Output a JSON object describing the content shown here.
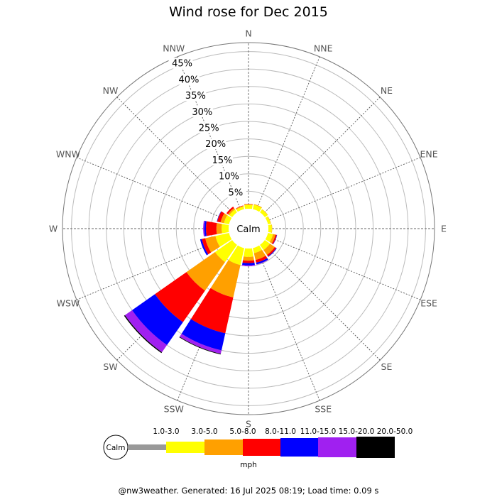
{
  "chart_data": {
    "type": "windrose",
    "title": "Wind rose for Dec 2015",
    "directions": [
      "N",
      "NNE",
      "NE",
      "ENE",
      "E",
      "ESE",
      "SE",
      "SSE",
      "S",
      "SSW",
      "SW",
      "WSW",
      "W",
      "WNW",
      "NW",
      "NNW"
    ],
    "radial_ticks": [
      "5%",
      "10%",
      "15%",
      "20%",
      "25%",
      "30%",
      "35%",
      "40%",
      "45%"
    ],
    "radial_max_percent": 50,
    "calm_label": "Calm",
    "units": "mph",
    "bins": [
      "1.0-3.0",
      "3.0-5.0",
      "5.0-8.0",
      "8.0-11.0",
      "11.0-15.0",
      "15.0-20.0",
      "20.0-50.0"
    ],
    "bin_colors": [
      "#999999",
      "#ffff00",
      "#ffa000",
      "#ff0000",
      "#0000ff",
      "#a020f0",
      "#000000"
    ],
    "cumulative_percent": {
      "N": [
        0,
        1.2,
        1.3,
        1.4,
        1.4,
        1.4,
        1.4
      ],
      "NNE": [
        0,
        1.3,
        1.5,
        1.5,
        1.5,
        1.5,
        1.5
      ],
      "NE": [
        0,
        1.0,
        1.1,
        1.1,
        1.1,
        1.1,
        1.1
      ],
      "ENE": [
        0,
        0.8,
        0.9,
        0.9,
        0.9,
        0.9,
        0.9
      ],
      "E": [
        0,
        1.0,
        1.1,
        1.1,
        1.1,
        1.1,
        1.1
      ],
      "ESE": [
        0,
        1.5,
        2.2,
        2.6,
        2.7,
        2.7,
        2.7
      ],
      "SE": [
        0,
        1.8,
        3.5,
        4.0,
        4.2,
        4.2,
        4.2
      ],
      "SSE": [
        0,
        1.5,
        3.5,
        4.3,
        4.8,
        4.9,
        4.9
      ],
      "S": [
        0,
        2.4,
        3.5,
        4.2,
        4.8,
        5.1,
        5.1
      ],
      "SSW": [
        0,
        5.0,
        14.5,
        25.0,
        30.0,
        31.0,
        31.2
      ],
      "SW": [
        0,
        6.0,
        16.0,
        27.0,
        35.0,
        37.5,
        37.8
      ],
      "WSW": [
        0,
        4.0,
        7.0,
        8.0,
        8.5,
        8.5,
        8.5
      ],
      "W": [
        0,
        2.0,
        3.5,
        6.5,
        7.0,
        7.3,
        7.3
      ],
      "WNW": [
        0,
        1.5,
        2.5,
        3.5,
        3.6,
        3.6,
        3.6
      ],
      "NW": [
        0,
        1.0,
        1.5,
        2.0,
        2.0,
        2.0,
        2.0
      ],
      "NNW": [
        0,
        0.8,
        1.0,
        1.1,
        1.1,
        1.1,
        1.1
      ]
    }
  },
  "footer": "@nw3weather. Generated: 16 Jul 2025 08:19; Load time: 0.09 s"
}
